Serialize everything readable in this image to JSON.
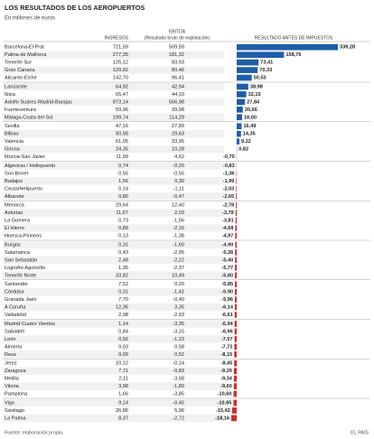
{
  "header": {
    "title": "LOS RESULTADOS DE LOS AEROPUERTOS",
    "subtitle": "En millones de euros"
  },
  "columns": {
    "ingresos": "INGRESOS",
    "ebitda": "EBITDA",
    "ebitda_note": "(Resultado bruto de explotación)",
    "resultado": "RESULTADO ANTES DE IMPUESTOS"
  },
  "colors": {
    "positive": "#1f5ea8",
    "negative": "#d42a2a"
  },
  "groups": [
    {
      "rows": [
        {
          "name": "Barcelona-El Prat",
          "ingresos": "721,59",
          "ebitda": "509,59",
          "resultado": {
            "value": 339.28,
            "label": "339,28"
          }
        },
        {
          "name": "Palma de Mallorca",
          "ingresos": "277,35",
          "ebitda": "181,32",
          "resultado": {
            "value": 158.76,
            "label": "158,76"
          }
        },
        {
          "name": "Tenerife Sur",
          "ingresos": "125,12",
          "ebitda": "83,93",
          "resultado": {
            "value": 73.41,
            "label": "73,41"
          }
        },
        {
          "name": "Gran Canaria",
          "ingresos": "129,92",
          "ebitda": "80,46",
          "resultado": {
            "value": 70.33,
            "label": "70,33"
          }
        },
        {
          "name": "Alicante-Elche",
          "ingresos": "142,70",
          "ebitda": "96,41",
          "resultado": {
            "value": 50.53,
            "label": "50,53"
          }
        }
      ]
    },
    {
      "rows": [
        {
          "name": "Lanzarote",
          "ingresos": "64,92",
          "ebitda": "42,94",
          "resultado": {
            "value": 38.98,
            "label": "38,98"
          }
        },
        {
          "name": "Ibiza",
          "ingresos": "65,47",
          "ebitda": "44,10",
          "resultado": {
            "value": 32.15,
            "label": "32,15"
          }
        },
        {
          "name": "Adolfo Suárez-Madrid-Barajas",
          "ingresos": "873,14",
          "ebitda": "566,98",
          "resultado": {
            "value": 27.84,
            "label": "27,84"
          }
        },
        {
          "name": "Fuerteventura",
          "ingresos": "59,96",
          "ebitda": "39,98",
          "resultado": {
            "value": 20.66,
            "label": "20,66"
          }
        },
        {
          "name": "Málaga-Costa del Sol",
          "ingresos": "199,74",
          "ebitda": "114,29",
          "resultado": {
            "value": 18.0,
            "label": "18,00"
          }
        }
      ]
    },
    {
      "rows": [
        {
          "name": "Sevilla",
          "ingresos": "47,16",
          "ebitda": "27,89",
          "resultado": {
            "value": 16.49,
            "label": "16,49"
          }
        },
        {
          "name": "Bilbao",
          "ingresos": "50,58",
          "ebitda": "29,63",
          "resultado": {
            "value": 14.35,
            "label": "14,35"
          }
        },
        {
          "name": "Valencia",
          "ingresos": "61,05",
          "ebitda": "33,95",
          "resultado": {
            "value": 9.22,
            "label": "9,22"
          }
        },
        {
          "name": "Girona",
          "ingresos": "24,35",
          "ebitda": "10,28",
          "resultado": {
            "value": 0.82,
            "label": "0,82"
          }
        },
        {
          "name": "Murcia-San Javier",
          "ingresos": "11,99",
          "ebitda": "4,62",
          "resultado": {
            "value": -0.7,
            "label": "-0,70"
          }
        }
      ]
    },
    {
      "rows": [
        {
          "name": "Algeciras / Heliopuerto",
          "ingresos": "0,74",
          "ebitda": "-0,20",
          "resultado": {
            "value": -0.83,
            "label": "-0,83"
          }
        },
        {
          "name": "Son Bonet",
          "ingresos": "0,55",
          "ebitda": "-0,55",
          "resultado": {
            "value": -1.36,
            "label": "-1,36"
          }
        },
        {
          "name": "Badajoz",
          "ingresos": "1,56",
          "ebitda": "0,30",
          "resultado": {
            "value": -1.99,
            "label": "-1,99"
          }
        },
        {
          "name": "Ceuta/Helipuerto",
          "ingresos": "0,14",
          "ebitda": "-1,11",
          "resultado": {
            "value": -2.03,
            "label": "-2,03"
          }
        },
        {
          "name": "Albacete",
          "ingresos": "0,80",
          "ebitda": "-0,47",
          "resultado": {
            "value": -2.65,
            "label": "-2,65"
          }
        }
      ]
    },
    {
      "rows": [
        {
          "name": "Menorca",
          "ingresos": "29,64",
          "ebitda": "12,40",
          "resultado": {
            "value": -2.78,
            "label": "-2,78"
          }
        },
        {
          "name": "Asturias",
          "ingresos": "11,67",
          "ebitda": "2,03",
          "resultado": {
            "value": -3.78,
            "label": "-3,78"
          }
        },
        {
          "name": "La Gomera",
          "ingresos": "0,73",
          "ebitda": "-1,56",
          "resultado": {
            "value": -3.81,
            "label": "-3,81"
          }
        },
        {
          "name": "El Hierro",
          "ingresos": "0,89",
          "ebitda": "-2,16",
          "resultado": {
            "value": -4.68,
            "label": "-4,68"
          }
        },
        {
          "name": "Huesca-Pirineos",
          "ingresos": "0,13",
          "ebitda": "-1,38",
          "resultado": {
            "value": -4.97,
            "label": "-4,97"
          }
        }
      ]
    },
    {
      "rows": [
        {
          "name": "Burgos",
          "ingresos": "0,31",
          "ebitda": "-1,60",
          "resultado": {
            "value": -4.9,
            "label": "-4,90"
          }
        },
        {
          "name": "Salamanca",
          "ingresos": "0,43",
          "ebitda": "-2,95",
          "resultado": {
            "value": -5.36,
            "label": "-5,36"
          }
        },
        {
          "name": "San Sebastián",
          "ingresos": "2,48",
          "ebitda": "-2,22",
          "resultado": {
            "value": -5.4,
            "label": "-5,40"
          }
        },
        {
          "name": "Logroño-Agoncillo",
          "ingresos": "1,35",
          "ebitda": "-2,37",
          "resultado": {
            "value": -5.77,
            "label": "-5,77"
          }
        },
        {
          "name": "Tenerife Norte",
          "ingresos": "33,82",
          "ebitda": "10,49",
          "resultado": {
            "value": -5.8,
            "label": "-5,80"
          }
        }
      ]
    },
    {
      "rows": [
        {
          "name": "Santander",
          "ingresos": "7,52",
          "ebitda": "0,20",
          "resultado": {
            "value": -5.85,
            "label": "-5,85"
          }
        },
        {
          "name": "Córdoba",
          "ingresos": "0,31",
          "ebitda": "-1,41",
          "resultado": {
            "value": -5.9,
            "label": "-5,90"
          }
        },
        {
          "name": "Granada Jaén",
          "ingresos": "7,70",
          "ebitda": "-0,40",
          "resultado": {
            "value": -5.96,
            "label": "-5,96"
          }
        },
        {
          "name": "A Coruña",
          "ingresos": "12,36",
          "ebitda": "3,35",
          "resultado": {
            "value": -6.14,
            "label": "-6,14"
          }
        },
        {
          "name": "Valladolid",
          "ingresos": "2,08",
          "ebitda": "-2,93",
          "resultado": {
            "value": -6.61,
            "label": "-6,61"
          }
        }
      ]
    },
    {
      "rows": [
        {
          "name": "Madrid-Cuatro Vientos",
          "ingresos": "1,14",
          "ebitda": "-3,35",
          "resultado": {
            "value": -6.94,
            "label": "-6,94"
          }
        },
        {
          "name": "Sabadell",
          "ingresos": "0,84",
          "ebitda": "-3,15",
          "resultado": {
            "value": -6.96,
            "label": "-6,96"
          }
        },
        {
          "name": "León",
          "ingresos": "0,56",
          "ebitda": "-1,23",
          "resultado": {
            "value": -7.07,
            "label": "-7,07"
          }
        },
        {
          "name": "Almería",
          "ingresos": "9,03",
          "ebitda": "0,58",
          "resultado": {
            "value": -7.72,
            "label": "-7,72"
          }
        },
        {
          "name": "Reus",
          "ingresos": "9,09",
          "ebitda": "0,52",
          "resultado": {
            "value": -8.15,
            "label": "-8,15"
          }
        }
      ]
    },
    {
      "rows": [
        {
          "name": "Jerez",
          "ingresos": "10,12",
          "ebitda": "-0,14",
          "resultado": {
            "value": -8.45,
            "label": "-8,45"
          }
        },
        {
          "name": "Zaragoza",
          "ingresos": "7,71",
          "ebitda": "-0,83",
          "resultado": {
            "value": -9.29,
            "label": "-9,29"
          }
        },
        {
          "name": "Melilla",
          "ingresos": "2,11",
          "ebitda": "-3,58",
          "resultado": {
            "value": -9.34,
            "label": "-9,34"
          }
        },
        {
          "name": "Vitoria",
          "ingresos": "3,98",
          "ebitda": "-1,89",
          "resultado": {
            "value": -9.6,
            "label": "-9,60"
          }
        },
        {
          "name": "Pamplona",
          "ingresos": "1,66",
          "ebitda": "-3,85",
          "resultado": {
            "value": -10.6,
            "label": "-10,60"
          }
        }
      ]
    },
    {
      "rows": [
        {
          "name": "Vigo",
          "ingresos": "9,14",
          "ebitda": "-0,45",
          "resultado": {
            "value": -10.85,
            "label": "-10,85"
          }
        },
        {
          "name": "Santiago",
          "ingresos": "26,86",
          "ebitda": "5,96",
          "resultado": {
            "value": -15.42,
            "label": "-15,42"
          }
        },
        {
          "name": "La Palma",
          "ingresos": "8,37",
          "ebitda": "-2,72",
          "resultado": {
            "value": -18.16,
            "label": "-18,16"
          }
        }
      ]
    }
  ],
  "footer": {
    "source": "Fuente: elaboración propia",
    "brand": "EL PAÍS"
  }
}
